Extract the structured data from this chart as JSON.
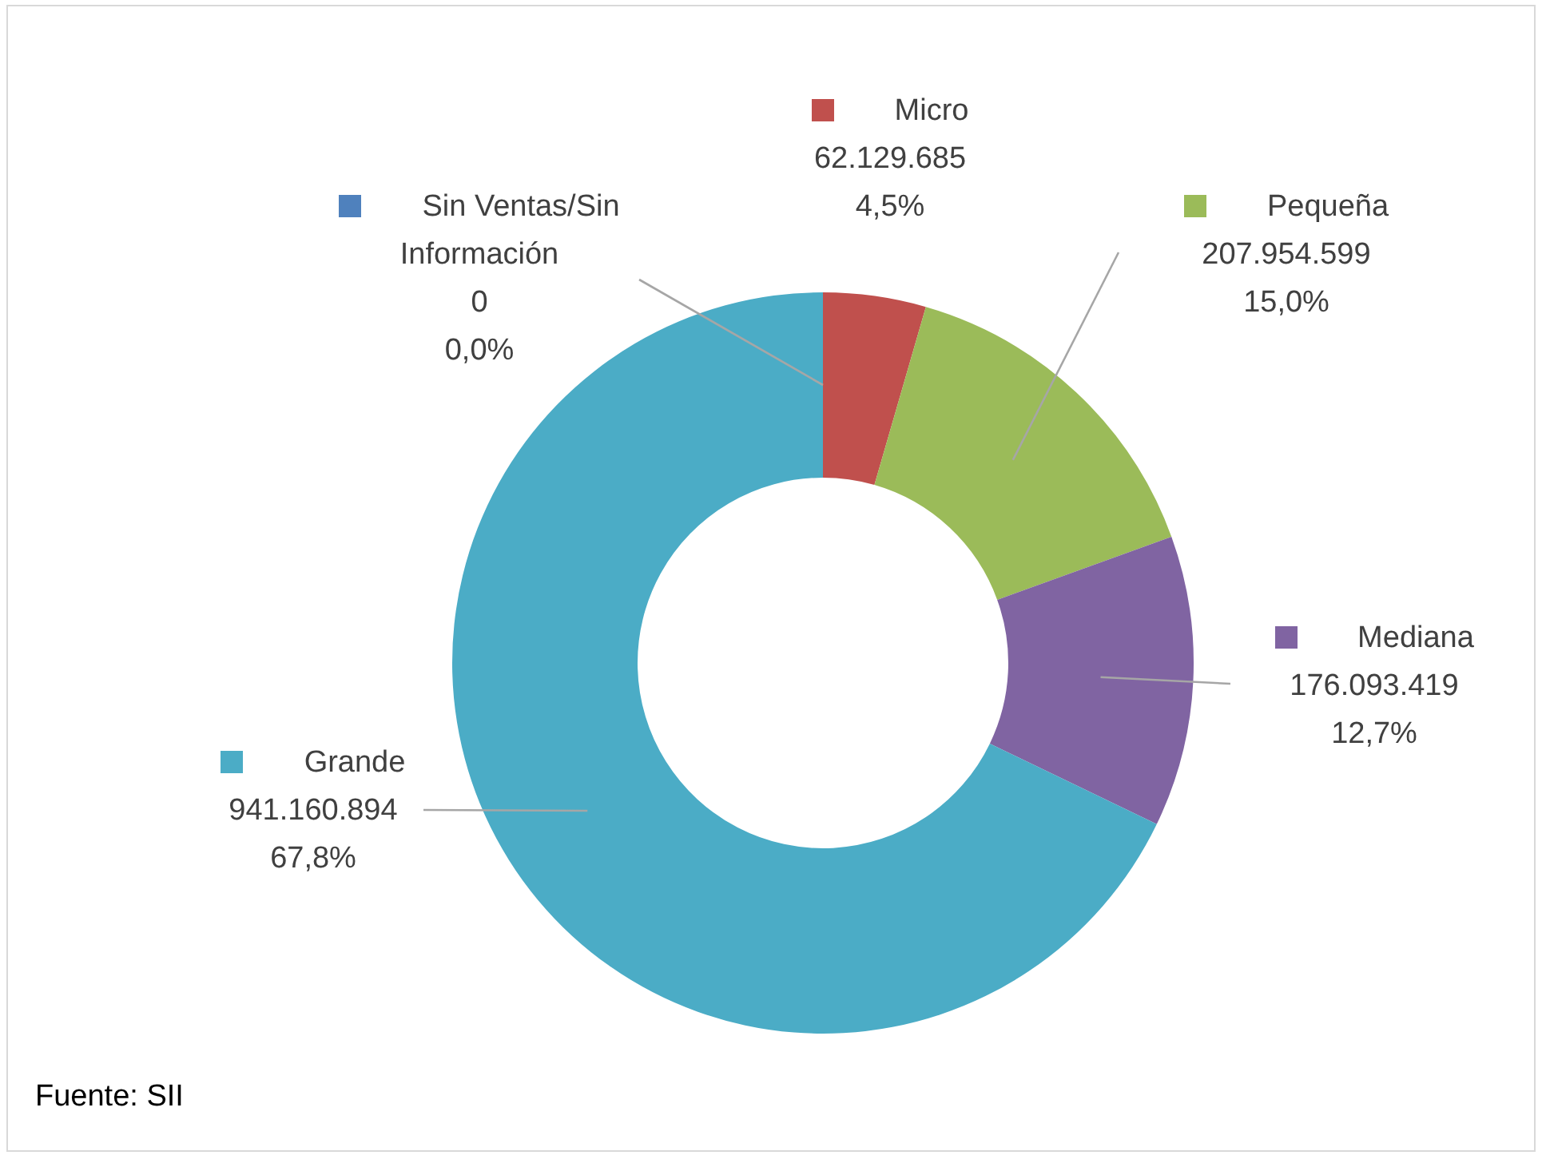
{
  "chart_data": {
    "type": "donut",
    "categories": [
      "Sin Ventas/Sin Información",
      "Micro",
      "Pequeña",
      "Mediana",
      "Grande"
    ],
    "values": [
      0,
      62129685,
      207954599,
      176093419,
      941160894
    ],
    "colors": [
      "#4f81bd",
      "#c0504d",
      "#9bbb59",
      "#8064a2",
      "#4bacc6"
    ],
    "value_labels": [
      "0\n0,0%",
      "62.129.685\n4,5%",
      "207.954.599\n15,0%",
      "176.093.419\n12,7%",
      "941.160.894\n67,8%"
    ],
    "legend": "top",
    "annotations": [
      "Fuente: SII"
    ]
  }
}
